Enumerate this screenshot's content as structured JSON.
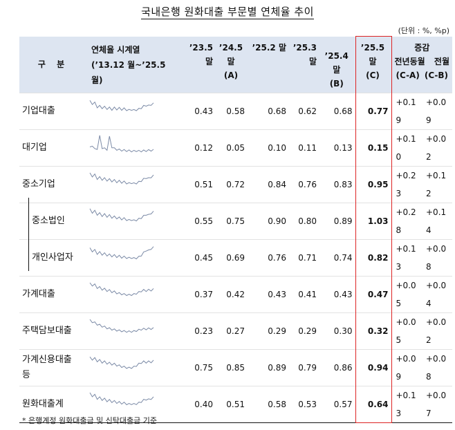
{
  "title": "국내은행 원화대출 부문별 연체율 추이",
  "unit": "(단위 : %, %p)",
  "headers": {
    "category": "구 분",
    "spark_line1": "연체율 시계열",
    "spark_line2": "(’13.12 월~’25.5 월)",
    "col_a_line1": "’23.5 말",
    "col_b_line1": "’24.5",
    "col_b_line2": "말",
    "col_b_line3": "(A)",
    "col_c_line1": "’25.2 말",
    "col_d_line1": "’25.3 말",
    "col_e_line1": "’25.4 말",
    "col_e_line2": "(B)",
    "col_f_line1": "’25.5",
    "col_f_line2": "말",
    "col_f_line3": "(C)",
    "change": "증감",
    "yoy": "전년동월",
    "mom": "전월",
    "yoy_formula": "(C-A)",
    "mom_formula": "(C-B)"
  },
  "rows": [
    {
      "label": "기업대출",
      "v1": "0.43",
      "v2": "0.58",
      "v3": "0.68",
      "v4": "0.62",
      "v5": "0.68",
      "v6": "0.77",
      "yoy": "+0.19",
      "mom": "+0.09",
      "trend": [
        0.9,
        0.75,
        0.8,
        0.55,
        0.6,
        0.5,
        0.55,
        0.45,
        0.5,
        0.4,
        0.5,
        0.42,
        0.48,
        0.4,
        0.45,
        0.38,
        0.36,
        0.4,
        0.35,
        0.38,
        0.42,
        0.5,
        0.6,
        0.65,
        0.62,
        0.7,
        0.75
      ]
    },
    {
      "label": "대기업",
      "v1": "0.12",
      "v2": "0.05",
      "v3": "0.10",
      "v4": "0.11",
      "v5": "0.13",
      "v6": "0.15",
      "yoy": "+0.10",
      "mom": "+0.02",
      "trend": [
        0.3,
        0.45,
        0.2,
        0.25,
        1.0,
        0.3,
        0.25,
        0.2,
        0.95,
        0.35,
        0.25,
        0.2,
        0.18,
        0.15,
        0.15,
        0.12,
        0.12,
        0.1,
        0.1,
        0.12,
        0.1,
        0.1,
        0.12,
        0.12,
        0.14,
        0.15,
        0.16
      ]
    },
    {
      "label": "중소기업",
      "v1": "0.51",
      "v2": "0.72",
      "v3": "0.84",
      "v4": "0.76",
      "v5": "0.83",
      "v6": "0.95",
      "yoy": "+0.23",
      "mom": "+0.12",
      "trend": [
        0.95,
        0.8,
        0.88,
        0.65,
        0.72,
        0.6,
        0.66,
        0.55,
        0.6,
        0.5,
        0.55,
        0.45,
        0.5,
        0.42,
        0.46,
        0.38,
        0.36,
        0.4,
        0.35,
        0.38,
        0.44,
        0.52,
        0.62,
        0.7,
        0.66,
        0.75,
        0.82
      ]
    },
    {
      "label": "중소법인",
      "sub": true,
      "v1": "0.55",
      "v2": "0.75",
      "v3": "0.90",
      "v4": "0.80",
      "v5": "0.89",
      "v6": "1.03",
      "yoy": "+0.28",
      "mom": "+0.14",
      "trend": [
        1.0,
        0.82,
        0.9,
        0.7,
        0.76,
        0.62,
        0.7,
        0.58,
        0.64,
        0.52,
        0.56,
        0.48,
        0.5,
        0.42,
        0.46,
        0.38,
        0.35,
        0.38,
        0.33,
        0.36,
        0.42,
        0.5,
        0.6,
        0.7,
        0.66,
        0.78,
        0.85
      ]
    },
    {
      "label": "개인사업자",
      "sub": true,
      "v1": "0.45",
      "v2": "0.69",
      "v3": "0.76",
      "v4": "0.71",
      "v5": "0.74",
      "v6": "0.82",
      "yoy": "+0.13",
      "mom": "+0.08",
      "trend": [
        0.85,
        0.7,
        0.75,
        0.55,
        0.62,
        0.5,
        0.55,
        0.45,
        0.48,
        0.4,
        0.44,
        0.36,
        0.4,
        0.32,
        0.35,
        0.3,
        0.28,
        0.3,
        0.26,
        0.28,
        0.34,
        0.45,
        0.6,
        0.75,
        0.72,
        0.85,
        0.92
      ]
    },
    {
      "label": "가계대출",
      "v1": "0.37",
      "v2": "0.42",
      "v3": "0.43",
      "v4": "0.41",
      "v5": "0.43",
      "v6": "0.47",
      "yoy": "+0.05",
      "mom": "+0.04",
      "trend": [
        0.95,
        0.85,
        0.88,
        0.7,
        0.72,
        0.6,
        0.62,
        0.52,
        0.54,
        0.45,
        0.46,
        0.38,
        0.36,
        0.32,
        0.3,
        0.28,
        0.26,
        0.28,
        0.3,
        0.36,
        0.42,
        0.5,
        0.55,
        0.52,
        0.56,
        0.55,
        0.6
      ]
    },
    {
      "label": "주택담보대출",
      "v1": "0.23",
      "v2": "0.27",
      "v3": "0.29",
      "v4": "0.29",
      "v5": "0.30",
      "v6": "0.32",
      "yoy": "+0.05",
      "mom": "+0.02",
      "trend": [
        0.95,
        0.85,
        0.8,
        0.7,
        0.66,
        0.58,
        0.55,
        0.48,
        0.45,
        0.4,
        0.38,
        0.34,
        0.32,
        0.3,
        0.28,
        0.27,
        0.26,
        0.27,
        0.28,
        0.32,
        0.36,
        0.4,
        0.42,
        0.42,
        0.44,
        0.44,
        0.46
      ]
    },
    {
      "label": "가계신용대출\n등",
      "v1": "0.75",
      "v2": "0.85",
      "v3": "0.89",
      "v4": "0.79",
      "v5": "0.86",
      "v6": "0.94",
      "yoy": "+0.09",
      "mom": "+0.08",
      "trend": [
        0.9,
        0.8,
        0.86,
        0.7,
        0.74,
        0.62,
        0.66,
        0.56,
        0.58,
        0.5,
        0.52,
        0.44,
        0.42,
        0.36,
        0.34,
        0.3,
        0.28,
        0.3,
        0.34,
        0.42,
        0.52,
        0.6,
        0.66,
        0.62,
        0.66,
        0.64,
        0.7
      ]
    },
    {
      "label": "원화대출계",
      "v1": "0.40",
      "v2": "0.51",
      "v3": "0.58",
      "v4": "0.53",
      "v5": "0.57",
      "v6": "0.64",
      "yoy": "+0.13",
      "mom": "+0.07",
      "trend": [
        0.95,
        0.8,
        0.85,
        0.65,
        0.7,
        0.58,
        0.62,
        0.5,
        0.54,
        0.45,
        0.48,
        0.4,
        0.42,
        0.36,
        0.38,
        0.32,
        0.3,
        0.33,
        0.3,
        0.33,
        0.38,
        0.46,
        0.55,
        0.6,
        0.58,
        0.64,
        0.7
      ]
    }
  ],
  "note": "* 은행계정 원화대출금 및 신탁대출금 기준",
  "colors": {
    "header_bg": "#dde5f1",
    "spark": "#7b8aa6",
    "highlight_border": "#d22222"
  }
}
